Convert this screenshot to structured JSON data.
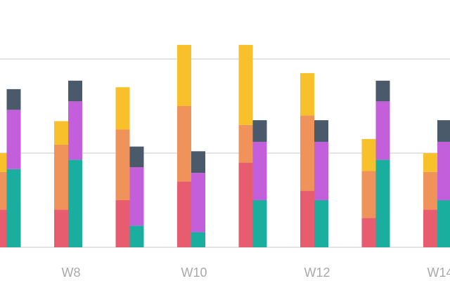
{
  "chart_data": {
    "type": "bar",
    "stacked": true,
    "grid": true,
    "categories": [
      null,
      "W8",
      null,
      "W10",
      null,
      "W12",
      null,
      "W14"
    ],
    "ylim": [
      0,
      25
    ],
    "yticks": [
      0,
      10,
      20
    ],
    "series": [
      {
        "stack": "a",
        "color": "#e75d6f",
        "values": [
          4.0,
          4.0,
          5.0,
          7.0,
          9.0,
          6.0,
          3.1,
          4.0
        ]
      },
      {
        "stack": "a",
        "color": "#f0935a",
        "values": [
          4.0,
          6.9,
          7.5,
          8.0,
          4.0,
          8.0,
          5.0,
          4.0
        ]
      },
      {
        "stack": "a",
        "color": "#f8c12c",
        "values": [
          2.0,
          2.5,
          4.5,
          6.5,
          8.5,
          4.5,
          3.4,
          2.0
        ]
      },
      {
        "stack": "b",
        "color": "#1aae9f",
        "values": [
          8.3,
          9.3,
          2.3,
          1.6,
          5.0,
          5.0,
          9.3,
          5.0
        ]
      },
      {
        "stack": "b",
        "color": "#c45fdb",
        "values": [
          6.3,
          6.2,
          6.2,
          6.3,
          6.2,
          6.2,
          6.2,
          6.2
        ]
      },
      {
        "stack": "b",
        "color": "#4b5a6a",
        "values": [
          2.2,
          2.2,
          2.2,
          2.3,
          2.3,
          2.3,
          2.2,
          2.3
        ]
      }
    ]
  }
}
